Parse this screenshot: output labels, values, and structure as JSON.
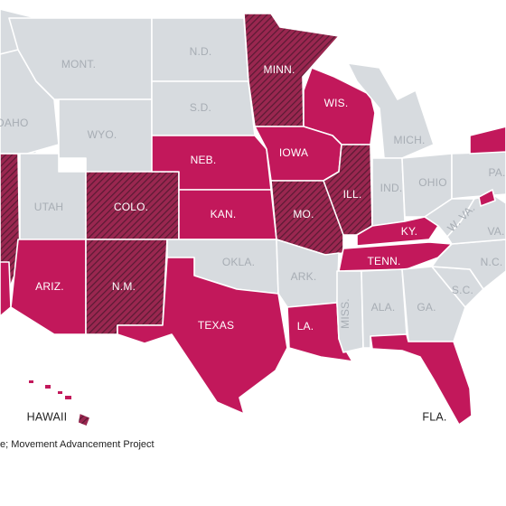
{
  "colors": {
    "none": "#d7dbdf",
    "full": "#c2185b",
    "partial_base": "#9a2750",
    "partial_hatch": "#5a1a33",
    "label_light": "#a7adb4",
    "label_dark": "#ffffff"
  },
  "states": [
    {
      "abbr": "MONT.",
      "status": "none"
    },
    {
      "abbr": "N.D.",
      "status": "none"
    },
    {
      "abbr": "MINN.",
      "status": "partial"
    },
    {
      "abbr": "IDAHO",
      "status": "none"
    },
    {
      "abbr": "S.D.",
      "status": "none"
    },
    {
      "abbr": "WIS.",
      "status": "full"
    },
    {
      "abbr": "WYO.",
      "status": "none"
    },
    {
      "abbr": "MICH.",
      "status": "none"
    },
    {
      "abbr": "IOWA",
      "status": "full"
    },
    {
      "abbr": "NEB.",
      "status": "full"
    },
    {
      "abbr": "UTAH",
      "status": "none"
    },
    {
      "abbr": "COLO.",
      "status": "partial"
    },
    {
      "abbr": "KAN.",
      "status": "full"
    },
    {
      "abbr": "MO.",
      "status": "partial"
    },
    {
      "abbr": "ILL.",
      "status": "partial"
    },
    {
      "abbr": "IND.",
      "status": "none"
    },
    {
      "abbr": "OHIO",
      "status": "none"
    },
    {
      "abbr": "PA.",
      "status": "none"
    },
    {
      "abbr": "W. VA.",
      "status": "none"
    },
    {
      "abbr": "VA.",
      "status": "none"
    },
    {
      "abbr": "KY.",
      "status": "full"
    },
    {
      "abbr": "TENN.",
      "status": "full"
    },
    {
      "abbr": "N.C.",
      "status": "none"
    },
    {
      "abbr": "ARIZ.",
      "status": "full"
    },
    {
      "abbr": "N.M.",
      "status": "partial"
    },
    {
      "abbr": "OKLA.",
      "status": "none"
    },
    {
      "abbr": "ARK.",
      "status": "none"
    },
    {
      "abbr": "MISS.",
      "status": "none"
    },
    {
      "abbr": "ALA.",
      "status": "none"
    },
    {
      "abbr": "GA.",
      "status": "none"
    },
    {
      "abbr": "S.C.",
      "status": "none"
    },
    {
      "abbr": "TEXAS",
      "status": "full"
    },
    {
      "abbr": "LA.",
      "status": "full"
    },
    {
      "abbr": "FLA.",
      "status": "full"
    },
    {
      "abbr": "HAWAII",
      "status": "partial"
    }
  ],
  "source_text": "e; Movement Advancement Project"
}
